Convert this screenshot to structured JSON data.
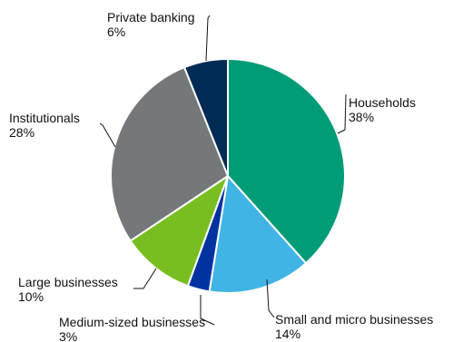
{
  "chart_data": {
    "type": "pie",
    "title": "",
    "start": "12 o'clock, clockwise",
    "slices": [
      {
        "label": "Households",
        "value_label": "38%",
        "value": 38,
        "color": "#009b77"
      },
      {
        "label": "Small and micro businesses",
        "value_label": "14%",
        "value": 14,
        "color": "#40b4e5"
      },
      {
        "label": "Medium-sized businesses",
        "value_label": "3%",
        "value": 3,
        "color": "#0033a0"
      },
      {
        "label": "Large businesses",
        "value_label": "10%",
        "value": 10,
        "color": "#78be20"
      },
      {
        "label": "Institutionals",
        "value_label": "28%",
        "value": 28,
        "color": "#75787b"
      },
      {
        "label": "Private banking",
        "value_label": "6%",
        "value": 6,
        "color": "#002b55"
      }
    ]
  }
}
